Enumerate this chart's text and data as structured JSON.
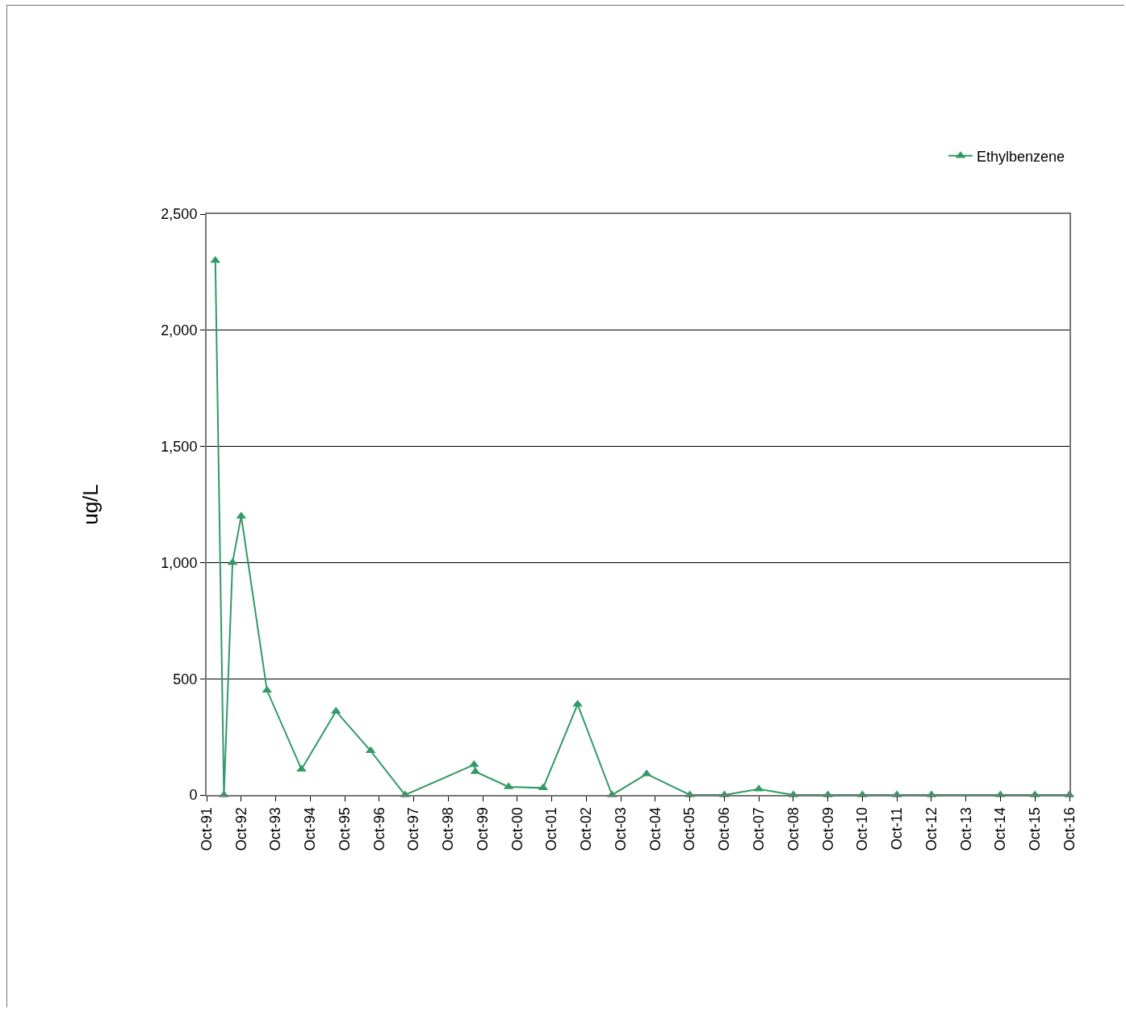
{
  "chart_data": {
    "type": "line",
    "ylabel": "ug/L",
    "x": [
      "1992-01-01",
      "1992-04-01",
      "1992-07-01",
      "1992-10-01",
      "1993-07-01",
      "1994-07-01",
      "1995-07-01",
      "1996-07-01",
      "1997-07-01",
      "1999-07-01",
      "1999-07-15",
      "2000-07-01",
      "2001-07-01",
      "2002-07-01",
      "2003-07-01",
      "2004-07-01",
      "2005-10-01",
      "2006-10-01",
      "2007-10-01",
      "2008-10-01",
      "2009-10-01",
      "2010-10-01",
      "2011-10-01",
      "2012-10-01",
      "2014-10-01",
      "2015-10-01",
      "2016-10-01"
    ],
    "series": [
      {
        "name": "Ethylbenzene",
        "color": "#339966",
        "values": [
          2300,
          0,
          1000,
          1200,
          450,
          110,
          360,
          190,
          0,
          130,
          100,
          35,
          30,
          390,
          0,
          90,
          0,
          0,
          25,
          0,
          0,
          0,
          0,
          0,
          0,
          0,
          0
        ]
      }
    ],
    "xlim": [
      "1991-10-01",
      "2016-10-01"
    ],
    "xticks": [
      {
        "value": "1991-10-01",
        "label": "Oct-91"
      },
      {
        "value": "1992-10-01",
        "label": "Oct-92"
      },
      {
        "value": "1993-10-01",
        "label": "Oct-93"
      },
      {
        "value": "1994-10-01",
        "label": "Oct-94"
      },
      {
        "value": "1995-10-01",
        "label": "Oct-95"
      },
      {
        "value": "1996-10-01",
        "label": "Oct-96"
      },
      {
        "value": "1997-10-01",
        "label": "Oct-97"
      },
      {
        "value": "1998-10-01",
        "label": "Oct-98"
      },
      {
        "value": "1999-10-01",
        "label": "Oct-99"
      },
      {
        "value": "2000-10-01",
        "label": "Oct-00"
      },
      {
        "value": "2001-10-01",
        "label": "Oct-01"
      },
      {
        "value": "2002-10-01",
        "label": "Oct-02"
      },
      {
        "value": "2003-10-01",
        "label": "Oct-03"
      },
      {
        "value": "2004-10-01",
        "label": "Oct-04"
      },
      {
        "value": "2005-10-01",
        "label": "Oct-05"
      },
      {
        "value": "2006-10-01",
        "label": "Oct-06"
      },
      {
        "value": "2007-10-01",
        "label": "Oct-07"
      },
      {
        "value": "2008-10-01",
        "label": "Oct-08"
      },
      {
        "value": "2009-10-01",
        "label": "Oct-09"
      },
      {
        "value": "2010-10-01",
        "label": "Oct-10"
      },
      {
        "value": "2011-10-01",
        "label": "Oct-11"
      },
      {
        "value": "2012-10-01",
        "label": "Oct-12"
      },
      {
        "value": "2013-10-01",
        "label": "Oct-13"
      },
      {
        "value": "2014-10-01",
        "label": "Oct-14"
      },
      {
        "value": "2015-10-01",
        "label": "Oct-15"
      },
      {
        "value": "2016-10-01",
        "label": "Oct-16"
      }
    ],
    "ylim": [
      0,
      2500
    ],
    "yticks": [
      {
        "value": 0,
        "label": "0"
      },
      {
        "value": 500,
        "label": "500"
      },
      {
        "value": 1000,
        "label": "1,000"
      },
      {
        "value": 1500,
        "label": "1,500"
      },
      {
        "value": 2000,
        "label": "2,000"
      },
      {
        "value": 2500,
        "label": "2,500"
      }
    ],
    "grid": "y",
    "legend": "top right",
    "marker": "triangle",
    "line_style": "solid"
  }
}
